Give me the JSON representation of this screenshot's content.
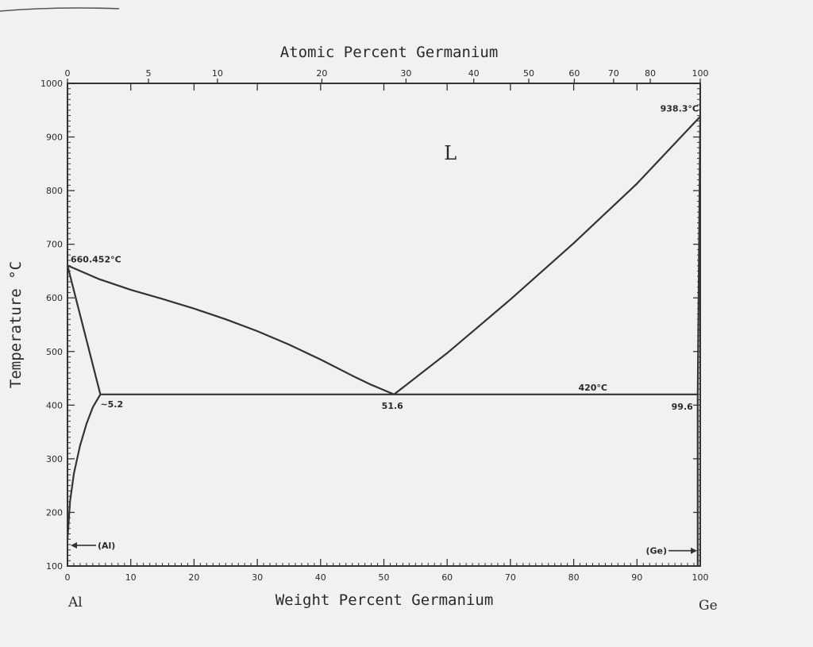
{
  "chart_data": {
    "type": "line",
    "title": "",
    "top_axis_label": "Atomic Percent Germanium",
    "xlabel": "Weight Percent Germanium",
    "ylabel": "Temperature °C",
    "xlim": [
      0,
      100
    ],
    "ylim": [
      100,
      1000
    ],
    "x_ticks": [
      "0",
      "10",
      "20",
      "30",
      "40",
      "50",
      "60",
      "70",
      "80",
      "90",
      "100"
    ],
    "y_ticks": [
      "100",
      "200",
      "300",
      "400",
      "500",
      "600",
      "700",
      "800",
      "900",
      "1000"
    ],
    "top_ticks": [
      {
        "label": "0",
        "wt": 0
      },
      {
        "label": "5",
        "wt": 12.8
      },
      {
        "label": "10",
        "wt": 23.7
      },
      {
        "label": "20",
        "wt": 40.2
      },
      {
        "label": "30",
        "wt": 53.5
      },
      {
        "label": "40",
        "wt": 64.2
      },
      {
        "label": "50",
        "wt": 72.9
      },
      {
        "label": "60",
        "wt": 80.1
      },
      {
        "label": "70",
        "wt": 86.3
      },
      {
        "label": "80",
        "wt": 92.1
      },
      {
        "label": "100",
        "wt": 100
      }
    ],
    "series": [
      {
        "values": [
          [
            0,
            660.452
          ],
          [
            5,
            635
          ],
          [
            10,
            615
          ],
          [
            15,
            598
          ],
          [
            20,
            580
          ],
          [
            25,
            560
          ],
          [
            30,
            538
          ],
          [
            35,
            513
          ],
          [
            40,
            485
          ],
          [
            45,
            455
          ],
          [
            48,
            438
          ],
          [
            50,
            428
          ],
          [
            51.6,
            420
          ]
        ]
      },
      {
        "values": [
          [
            51.6,
            420
          ],
          [
            60,
            497
          ],
          [
            70,
            597
          ],
          [
            80,
            702
          ],
          [
            90,
            813
          ],
          [
            100,
            938.3
          ]
        ]
      },
      {
        "values": [
          [
            5.2,
            420
          ],
          [
            51.6,
            420
          ],
          [
            99.6,
            420
          ]
        ]
      },
      {
        "values": [
          [
            0,
            660.452
          ],
          [
            5.2,
            420
          ]
        ]
      },
      {
        "values": [
          [
            0,
            150
          ],
          [
            0.4,
            220
          ],
          [
            1,
            272
          ],
          [
            2,
            325
          ],
          [
            3,
            365
          ],
          [
            4,
            396
          ],
          [
            5.2,
            420
          ]
        ]
      },
      {
        "values": [
          [
            100,
            938.3
          ],
          [
            99.6,
            420
          ],
          [
            99.6,
            100
          ]
        ]
      }
    ],
    "annotations": [
      {
        "text": "L",
        "x": 60.5,
        "y": 870
      },
      {
        "text": "660.452°C",
        "x": 0,
        "y": 660.452
      },
      {
        "text": "938.3°C",
        "x": 100,
        "y": 938.3
      },
      {
        "text": "420°C",
        "x": 84,
        "y": 420
      },
      {
        "text": "~5.2",
        "x": 5.2,
        "y": 420
      },
      {
        "text": "51.6",
        "x": 51.6,
        "y": 420
      },
      {
        "text": "99.6",
        "x": 99.6,
        "y": 420
      },
      {
        "text": "(Al)",
        "x": 0,
        "y": 140
      },
      {
        "text": "(Ge)",
        "x": 100,
        "y": 130
      }
    ],
    "element_labels": {
      "left": "Al",
      "right": "Ge"
    },
    "grid": false
  }
}
